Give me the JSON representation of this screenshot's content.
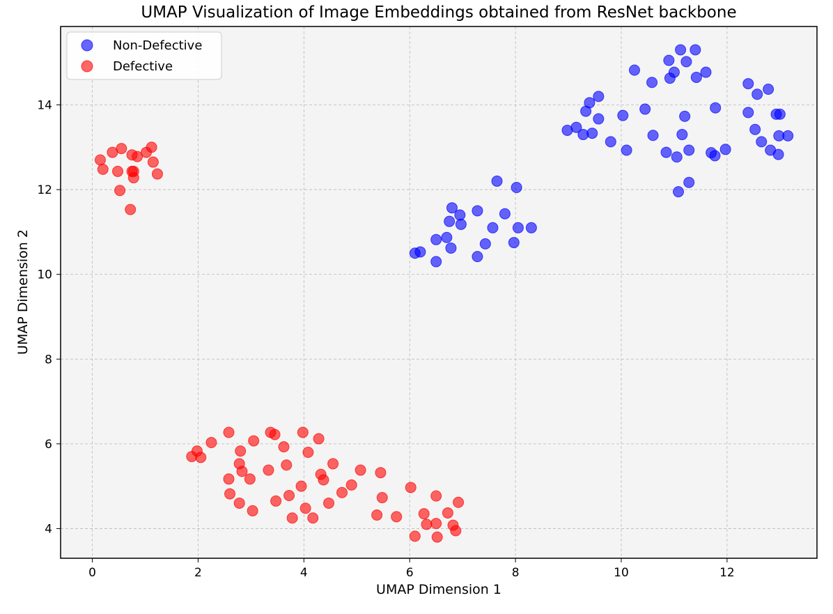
{
  "chart_data": {
    "type": "scatter",
    "title": "UMAP Visualization of Image Embeddings obtained from ResNet backbone",
    "xlabel": "UMAP Dimension 1",
    "ylabel": "UMAP Dimension 2",
    "xlim": [
      -0.6,
      13.7
    ],
    "ylim": [
      3.3,
      15.85
    ],
    "xticks": [
      0,
      2,
      4,
      6,
      8,
      10,
      12
    ],
    "yticks": [
      4,
      6,
      8,
      10,
      12,
      14
    ],
    "grid": true,
    "legend_position": "top-left",
    "series": [
      {
        "name": "Non-Defective",
        "color": "#0000ff",
        "points": [
          [
            6.1,
            10.5
          ],
          [
            6.2,
            10.53
          ],
          [
            6.5,
            10.3
          ],
          [
            6.5,
            10.82
          ],
          [
            6.7,
            10.87
          ],
          [
            6.75,
            11.25
          ],
          [
            6.78,
            10.62
          ],
          [
            6.8,
            11.57
          ],
          [
            6.95,
            11.4
          ],
          [
            6.97,
            11.18
          ],
          [
            7.28,
            11.5
          ],
          [
            7.28,
            10.42
          ],
          [
            7.43,
            10.72
          ],
          [
            7.57,
            11.1
          ],
          [
            7.65,
            12.2
          ],
          [
            7.8,
            11.43
          ],
          [
            7.97,
            10.75
          ],
          [
            8.02,
            12.05
          ],
          [
            8.05,
            11.1
          ],
          [
            8.3,
            11.1
          ],
          [
            8.98,
            13.4
          ],
          [
            9.15,
            13.47
          ],
          [
            9.28,
            13.3
          ],
          [
            9.33,
            13.85
          ],
          [
            9.4,
            14.05
          ],
          [
            9.45,
            13.33
          ],
          [
            9.57,
            14.2
          ],
          [
            9.57,
            13.67
          ],
          [
            9.8,
            13.13
          ],
          [
            10.03,
            13.75
          ],
          [
            10.1,
            12.93
          ],
          [
            10.25,
            14.82
          ],
          [
            10.45,
            13.9
          ],
          [
            10.58,
            14.53
          ],
          [
            10.6,
            13.28
          ],
          [
            10.85,
            12.88
          ],
          [
            10.9,
            15.05
          ],
          [
            10.92,
            14.63
          ],
          [
            11.0,
            14.77
          ],
          [
            11.05,
            12.77
          ],
          [
            11.08,
            11.95
          ],
          [
            11.12,
            15.3
          ],
          [
            11.15,
            13.3
          ],
          [
            11.2,
            13.73
          ],
          [
            11.23,
            15.02
          ],
          [
            11.28,
            12.93
          ],
          [
            11.28,
            12.17
          ],
          [
            11.4,
            15.3
          ],
          [
            11.42,
            14.65
          ],
          [
            11.6,
            14.77
          ],
          [
            11.7,
            12.87
          ],
          [
            11.77,
            12.8
          ],
          [
            11.78,
            13.93
          ],
          [
            11.97,
            12.95
          ],
          [
            12.4,
            14.5
          ],
          [
            12.4,
            13.82
          ],
          [
            12.53,
            13.42
          ],
          [
            12.57,
            14.25
          ],
          [
            12.65,
            13.13
          ],
          [
            12.78,
            14.37
          ],
          [
            12.82,
            12.93
          ],
          [
            12.93,
            13.78
          ],
          [
            12.97,
            12.83
          ],
          [
            12.98,
            13.27
          ],
          [
            13.0,
            13.78
          ],
          [
            13.15,
            13.27
          ]
        ]
      },
      {
        "name": "Defective",
        "color": "#ff0000",
        "points": [
          [
            0.15,
            12.7
          ],
          [
            0.2,
            12.48
          ],
          [
            0.38,
            12.88
          ],
          [
            0.48,
            12.43
          ],
          [
            0.52,
            11.98
          ],
          [
            0.55,
            12.97
          ],
          [
            0.72,
            11.53
          ],
          [
            0.75,
            12.82
          ],
          [
            0.75,
            12.43
          ],
          [
            0.78,
            12.43
          ],
          [
            0.78,
            12.28
          ],
          [
            0.85,
            12.78
          ],
          [
            1.02,
            12.88
          ],
          [
            1.12,
            13.0
          ],
          [
            1.15,
            12.65
          ],
          [
            1.23,
            12.37
          ],
          [
            1.88,
            5.7
          ],
          [
            1.98,
            5.83
          ],
          [
            2.05,
            5.68
          ],
          [
            2.25,
            6.03
          ],
          [
            2.58,
            6.27
          ],
          [
            2.58,
            5.17
          ],
          [
            2.6,
            4.82
          ],
          [
            2.78,
            4.6
          ],
          [
            2.78,
            5.53
          ],
          [
            2.8,
            5.83
          ],
          [
            2.83,
            5.35
          ],
          [
            2.98,
            5.17
          ],
          [
            3.03,
            4.42
          ],
          [
            3.05,
            6.07
          ],
          [
            3.33,
            5.38
          ],
          [
            3.37,
            6.27
          ],
          [
            3.45,
            6.22
          ],
          [
            3.47,
            4.65
          ],
          [
            3.62,
            5.93
          ],
          [
            3.67,
            5.5
          ],
          [
            3.72,
            4.78
          ],
          [
            3.78,
            4.25
          ],
          [
            3.95,
            5.0
          ],
          [
            3.98,
            6.27
          ],
          [
            4.03,
            4.48
          ],
          [
            4.08,
            5.8
          ],
          [
            4.17,
            4.25
          ],
          [
            4.28,
            6.12
          ],
          [
            4.32,
            5.28
          ],
          [
            4.37,
            5.15
          ],
          [
            4.47,
            4.6
          ],
          [
            4.55,
            5.53
          ],
          [
            4.72,
            4.85
          ],
          [
            4.9,
            5.03
          ],
          [
            5.07,
            5.38
          ],
          [
            5.38,
            4.32
          ],
          [
            5.45,
            5.32
          ],
          [
            5.48,
            4.73
          ],
          [
            5.75,
            4.28
          ],
          [
            6.02,
            4.97
          ],
          [
            6.1,
            3.82
          ],
          [
            6.27,
            4.35
          ],
          [
            6.32,
            4.1
          ],
          [
            6.5,
            4.77
          ],
          [
            6.5,
            4.12
          ],
          [
            6.52,
            3.8
          ],
          [
            6.72,
            4.37
          ],
          [
            6.82,
            4.08
          ],
          [
            6.87,
            3.95
          ],
          [
            6.92,
            4.62
          ]
        ]
      }
    ]
  }
}
